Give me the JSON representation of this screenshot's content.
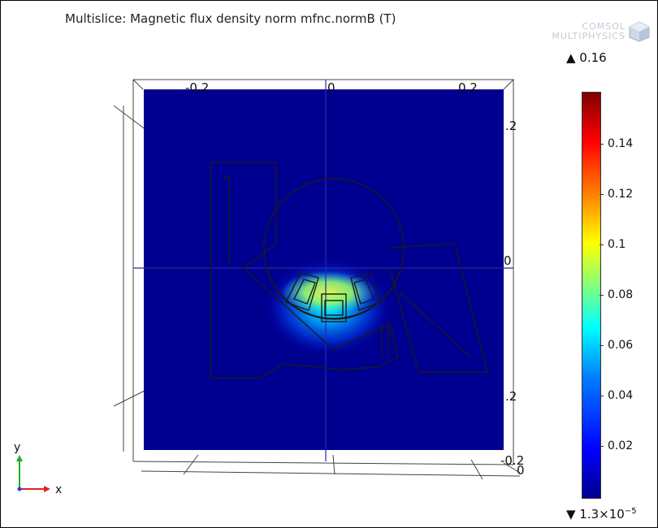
{
  "plot": {
    "title": "Multislice: Magnetic flux density norm mfnc.normB (T)"
  },
  "logo": {
    "line1": "COMSOL",
    "line2": "MULTIPHYSICS",
    "icon": "comsol-cube-icon"
  },
  "color_range": {
    "max_label": "▲ 0.16",
    "min_label_base": "▼ 1.3×10",
    "min_label_exp": "−5",
    "colormap": "rainbow",
    "ticks": [
      "0.14",
      "0.12",
      "0.1",
      "0.08",
      "0.06",
      "0.04",
      "0.02"
    ]
  },
  "axes": {
    "top_ticks": [
      "-0.2",
      "0",
      "0.2"
    ],
    "right_ticks": [
      ".2",
      "0",
      ".2"
    ],
    "bottom_ticks": [
      "-0.2",
      "0"
    ],
    "triad": {
      "y": "y",
      "x": "x"
    },
    "colors": {
      "x": "#e02020",
      "y": "#20b020",
      "z": "#2040e0"
    }
  }
}
